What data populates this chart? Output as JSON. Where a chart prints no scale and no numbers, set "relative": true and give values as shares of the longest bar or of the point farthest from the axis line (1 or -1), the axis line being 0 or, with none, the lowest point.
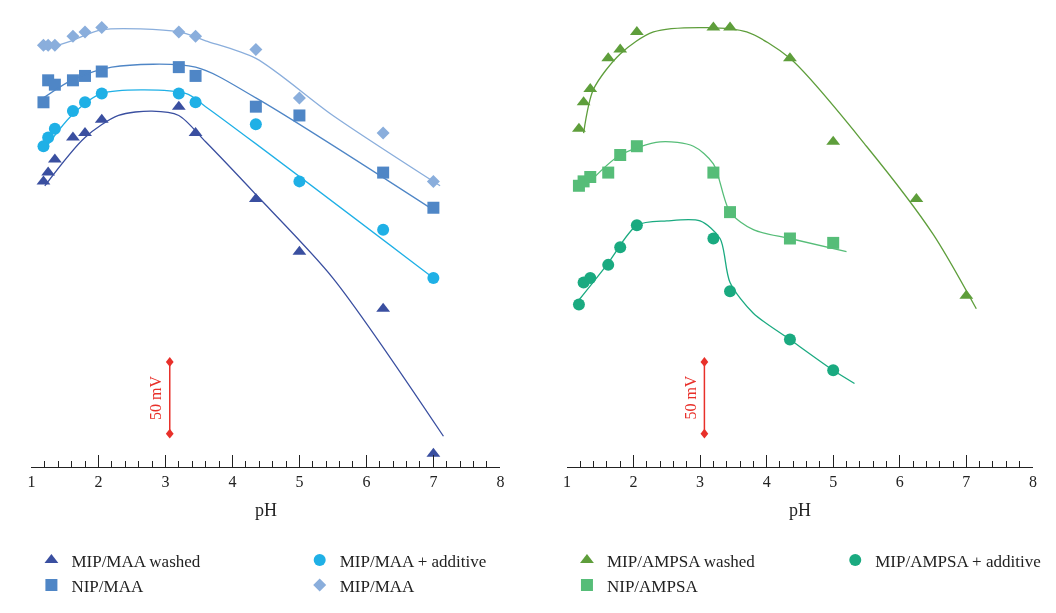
{
  "chart_data": [
    {
      "type": "scatter",
      "relative": true,
      "xlabel": "pH",
      "xlim": [
        1,
        8
      ],
      "xticks": [
        1,
        2,
        3,
        4,
        5,
        6,
        7,
        8
      ],
      "legend": "bottom",
      "annotations": [
        "50 mV"
      ],
      "series": [
        {
          "name": "MIP/MAA washed",
          "color": "#3a4fa0",
          "marker": "triangle",
          "x": [
            1.18,
            1.25,
            1.35,
            1.62,
            1.8,
            2.05,
            3.2,
            3.45,
            4.35,
            5,
            6.25,
            7
          ],
          "values": [
            0.65,
            0.67,
            0.7,
            0.75,
            0.76,
            0.79,
            0.82,
            0.76,
            0.61,
            0.49,
            0.36,
            0.03
          ]
        },
        {
          "name": "MIP/MAA + additive",
          "color": "#1fb0e6",
          "marker": "circle",
          "x": [
            1.18,
            1.25,
            1.35,
            1.62,
            1.8,
            2.05,
            3.2,
            3.45,
            4.35,
            5,
            6.25,
            7
          ],
          "values": [
            0.73,
            0.75,
            0.77,
            0.81,
            0.83,
            0.85,
            0.85,
            0.83,
            0.78,
            0.65,
            0.54,
            0.43
          ]
        },
        {
          "name": "NIP/MAA",
          "color": "#4f86c6",
          "marker": "square",
          "x": [
            1.18,
            1.25,
            1.35,
            1.62,
            1.8,
            2.05,
            3.2,
            3.45,
            4.35,
            5,
            6.25,
            7
          ],
          "values": [
            0.83,
            0.88,
            0.87,
            0.88,
            0.89,
            0.9,
            0.91,
            0.89,
            0.82,
            0.8,
            0.67,
            0.59
          ]
        },
        {
          "name": "MIP/MAA",
          "color": "#8aaedc",
          "marker": "diamond",
          "x": [
            1.18,
            1.25,
            1.35,
            1.62,
            1.8,
            2.05,
            3.2,
            3.45,
            4.35,
            5,
            6.25,
            7
          ],
          "values": [
            0.96,
            0.96,
            0.96,
            0.98,
            0.99,
            1.0,
            0.99,
            0.98,
            0.95,
            0.84,
            0.76,
            0.65
          ]
        },
        {
          "type": "line",
          "color": "#3a4fa0",
          "line_style": "solid",
          "x": [
            1.2,
            1.8,
            2.3,
            2.8,
            3.2,
            3.6,
            4.35,
            5.5,
            7.15
          ],
          "values": [
            0.64,
            0.75,
            0.8,
            0.81,
            0.8,
            0.74,
            0.62,
            0.43,
            0.07
          ]
        },
        {
          "type": "line",
          "color": "#1fb0e6",
          "line_style": "solid",
          "x": [
            1.18,
            1.6,
            2.05,
            3.3,
            3.6,
            7.0
          ],
          "values": [
            0.72,
            0.8,
            0.85,
            0.85,
            0.82,
            0.43
          ]
        },
        {
          "type": "line",
          "color": "#4f86c6",
          "line_style": "solid",
          "x": [
            1.18,
            1.6,
            2.2,
            3.45,
            4.35,
            7.05
          ],
          "values": [
            0.84,
            0.88,
            0.91,
            0.91,
            0.84,
            0.58
          ]
        },
        {
          "type": "line",
          "color": "#8aaedc",
          "line_style": "solid",
          "x": [
            1.18,
            1.6,
            2.05,
            3.2,
            3.6,
            4.35,
            5.5,
            7.1
          ],
          "values": [
            0.95,
            0.97,
            0.995,
            0.99,
            0.97,
            0.93,
            0.8,
            0.64
          ]
        }
      ]
    },
    {
      "type": "scatter",
      "relative": true,
      "xlabel": "pH",
      "xlim": [
        1,
        8
      ],
      "xticks": [
        1,
        2,
        3,
        4,
        5,
        6,
        7,
        8
      ],
      "legend": "bottom",
      "annotations": [
        "50 mV"
      ],
      "series": [
        {
          "name": "MIP/AMPSA washed",
          "color": "#5e9e3b",
          "marker": "triangle",
          "x": [
            1.18,
            1.25,
            1.35,
            1.62,
            1.8,
            2.05,
            3.2,
            3.45,
            4.35,
            5,
            6.25,
            7
          ],
          "values": [
            0.77,
            0.83,
            0.86,
            0.93,
            0.95,
            0.99,
            1.0,
            1.0,
            0.93,
            0.74,
            0.61,
            0.39
          ]
        },
        {
          "name": "MIP/AMPSA + additive",
          "color": "#1aaa80",
          "marker": "circle",
          "x": [
            1.18,
            1.25,
            1.35,
            1.62,
            1.8,
            2.05,
            3.2,
            3.45,
            4.35,
            5
          ],
          "values": [
            0.37,
            0.42,
            0.43,
            0.46,
            0.5,
            0.55,
            0.52,
            0.4,
            0.29,
            0.22
          ]
        },
        {
          "name": "NIP/AMPSA",
          "color": "#56bd78",
          "marker": "square",
          "x": [
            1.18,
            1.25,
            1.35,
            1.62,
            1.8,
            2.05,
            3.2,
            3.45,
            4.35,
            5
          ],
          "values": [
            0.64,
            0.65,
            0.66,
            0.67,
            0.71,
            0.73,
            0.67,
            0.58,
            0.52,
            0.51
          ]
        },
        {
          "type": "line",
          "color": "#5e9e3b",
          "line_style": "solid",
          "x": [
            1.25,
            1.4,
            1.8,
            2.3,
            3.1,
            3.7,
            4.35,
            5.5,
            6.5,
            7.15
          ],
          "values": [
            0.76,
            0.86,
            0.94,
            0.99,
            1.0,
            0.99,
            0.93,
            0.73,
            0.53,
            0.36
          ]
        },
        {
          "type": "line",
          "color": "#1aaa80",
          "line_style": "solid",
          "x": [
            1.18,
            1.6,
            2.05,
            2.5,
            3.0,
            3.3,
            3.45,
            3.8,
            4.35,
            5.0,
            5.32
          ],
          "values": [
            0.38,
            0.46,
            0.55,
            0.56,
            0.56,
            0.52,
            0.42,
            0.35,
            0.29,
            0.22,
            0.19
          ]
        },
        {
          "type": "line",
          "color": "#56bd78",
          "line_style": "solid",
          "x": [
            1.35,
            1.8,
            2.4,
            2.9,
            3.2,
            3.45,
            3.8,
            4.35,
            5.2
          ],
          "values": [
            0.65,
            0.71,
            0.74,
            0.73,
            0.69,
            0.58,
            0.54,
            0.52,
            0.49
          ]
        }
      ]
    }
  ]
}
